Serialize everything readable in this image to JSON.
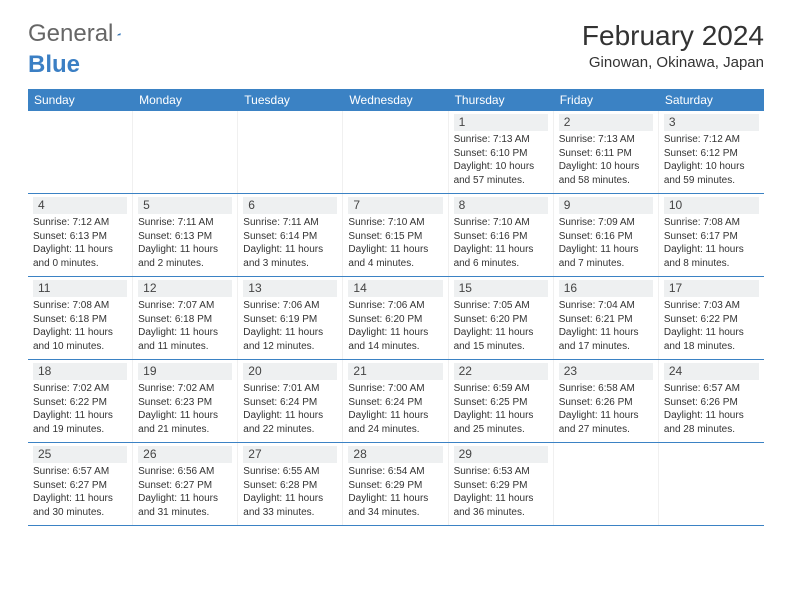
{
  "logo": {
    "text1": "General",
    "text2": "Blue"
  },
  "title": "February 2024",
  "location": "Ginowan, Okinawa, Japan",
  "colors": {
    "header_bg": "#3b82c4",
    "header_text": "#ffffff",
    "daynum_bg": "#eef0f1",
    "border": "#3b82c4",
    "logo_blue": "#3b7fc4"
  },
  "day_headers": [
    "Sunday",
    "Monday",
    "Tuesday",
    "Wednesday",
    "Thursday",
    "Friday",
    "Saturday"
  ],
  "weeks": [
    [
      {
        "empty": true
      },
      {
        "empty": true
      },
      {
        "empty": true
      },
      {
        "empty": true
      },
      {
        "day": "1",
        "sunrise": "Sunrise: 7:13 AM",
        "sunset": "Sunset: 6:10 PM",
        "daylight1": "Daylight: 10 hours",
        "daylight2": "and 57 minutes."
      },
      {
        "day": "2",
        "sunrise": "Sunrise: 7:13 AM",
        "sunset": "Sunset: 6:11 PM",
        "daylight1": "Daylight: 10 hours",
        "daylight2": "and 58 minutes."
      },
      {
        "day": "3",
        "sunrise": "Sunrise: 7:12 AM",
        "sunset": "Sunset: 6:12 PM",
        "daylight1": "Daylight: 10 hours",
        "daylight2": "and 59 minutes."
      }
    ],
    [
      {
        "day": "4",
        "sunrise": "Sunrise: 7:12 AM",
        "sunset": "Sunset: 6:13 PM",
        "daylight1": "Daylight: 11 hours",
        "daylight2": "and 0 minutes."
      },
      {
        "day": "5",
        "sunrise": "Sunrise: 7:11 AM",
        "sunset": "Sunset: 6:13 PM",
        "daylight1": "Daylight: 11 hours",
        "daylight2": "and 2 minutes."
      },
      {
        "day": "6",
        "sunrise": "Sunrise: 7:11 AM",
        "sunset": "Sunset: 6:14 PM",
        "daylight1": "Daylight: 11 hours",
        "daylight2": "and 3 minutes."
      },
      {
        "day": "7",
        "sunrise": "Sunrise: 7:10 AM",
        "sunset": "Sunset: 6:15 PM",
        "daylight1": "Daylight: 11 hours",
        "daylight2": "and 4 minutes."
      },
      {
        "day": "8",
        "sunrise": "Sunrise: 7:10 AM",
        "sunset": "Sunset: 6:16 PM",
        "daylight1": "Daylight: 11 hours",
        "daylight2": "and 6 minutes."
      },
      {
        "day": "9",
        "sunrise": "Sunrise: 7:09 AM",
        "sunset": "Sunset: 6:16 PM",
        "daylight1": "Daylight: 11 hours",
        "daylight2": "and 7 minutes."
      },
      {
        "day": "10",
        "sunrise": "Sunrise: 7:08 AM",
        "sunset": "Sunset: 6:17 PM",
        "daylight1": "Daylight: 11 hours",
        "daylight2": "and 8 minutes."
      }
    ],
    [
      {
        "day": "11",
        "sunrise": "Sunrise: 7:08 AM",
        "sunset": "Sunset: 6:18 PM",
        "daylight1": "Daylight: 11 hours",
        "daylight2": "and 10 minutes."
      },
      {
        "day": "12",
        "sunrise": "Sunrise: 7:07 AM",
        "sunset": "Sunset: 6:18 PM",
        "daylight1": "Daylight: 11 hours",
        "daylight2": "and 11 minutes."
      },
      {
        "day": "13",
        "sunrise": "Sunrise: 7:06 AM",
        "sunset": "Sunset: 6:19 PM",
        "daylight1": "Daylight: 11 hours",
        "daylight2": "and 12 minutes."
      },
      {
        "day": "14",
        "sunrise": "Sunrise: 7:06 AM",
        "sunset": "Sunset: 6:20 PM",
        "daylight1": "Daylight: 11 hours",
        "daylight2": "and 14 minutes."
      },
      {
        "day": "15",
        "sunrise": "Sunrise: 7:05 AM",
        "sunset": "Sunset: 6:20 PM",
        "daylight1": "Daylight: 11 hours",
        "daylight2": "and 15 minutes."
      },
      {
        "day": "16",
        "sunrise": "Sunrise: 7:04 AM",
        "sunset": "Sunset: 6:21 PM",
        "daylight1": "Daylight: 11 hours",
        "daylight2": "and 17 minutes."
      },
      {
        "day": "17",
        "sunrise": "Sunrise: 7:03 AM",
        "sunset": "Sunset: 6:22 PM",
        "daylight1": "Daylight: 11 hours",
        "daylight2": "and 18 minutes."
      }
    ],
    [
      {
        "day": "18",
        "sunrise": "Sunrise: 7:02 AM",
        "sunset": "Sunset: 6:22 PM",
        "daylight1": "Daylight: 11 hours",
        "daylight2": "and 19 minutes."
      },
      {
        "day": "19",
        "sunrise": "Sunrise: 7:02 AM",
        "sunset": "Sunset: 6:23 PM",
        "daylight1": "Daylight: 11 hours",
        "daylight2": "and 21 minutes."
      },
      {
        "day": "20",
        "sunrise": "Sunrise: 7:01 AM",
        "sunset": "Sunset: 6:24 PM",
        "daylight1": "Daylight: 11 hours",
        "daylight2": "and 22 minutes."
      },
      {
        "day": "21",
        "sunrise": "Sunrise: 7:00 AM",
        "sunset": "Sunset: 6:24 PM",
        "daylight1": "Daylight: 11 hours",
        "daylight2": "and 24 minutes."
      },
      {
        "day": "22",
        "sunrise": "Sunrise: 6:59 AM",
        "sunset": "Sunset: 6:25 PM",
        "daylight1": "Daylight: 11 hours",
        "daylight2": "and 25 minutes."
      },
      {
        "day": "23",
        "sunrise": "Sunrise: 6:58 AM",
        "sunset": "Sunset: 6:26 PM",
        "daylight1": "Daylight: 11 hours",
        "daylight2": "and 27 minutes."
      },
      {
        "day": "24",
        "sunrise": "Sunrise: 6:57 AM",
        "sunset": "Sunset: 6:26 PM",
        "daylight1": "Daylight: 11 hours",
        "daylight2": "and 28 minutes."
      }
    ],
    [
      {
        "day": "25",
        "sunrise": "Sunrise: 6:57 AM",
        "sunset": "Sunset: 6:27 PM",
        "daylight1": "Daylight: 11 hours",
        "daylight2": "and 30 minutes."
      },
      {
        "day": "26",
        "sunrise": "Sunrise: 6:56 AM",
        "sunset": "Sunset: 6:27 PM",
        "daylight1": "Daylight: 11 hours",
        "daylight2": "and 31 minutes."
      },
      {
        "day": "27",
        "sunrise": "Sunrise: 6:55 AM",
        "sunset": "Sunset: 6:28 PM",
        "daylight1": "Daylight: 11 hours",
        "daylight2": "and 33 minutes."
      },
      {
        "day": "28",
        "sunrise": "Sunrise: 6:54 AM",
        "sunset": "Sunset: 6:29 PM",
        "daylight1": "Daylight: 11 hours",
        "daylight2": "and 34 minutes."
      },
      {
        "day": "29",
        "sunrise": "Sunrise: 6:53 AM",
        "sunset": "Sunset: 6:29 PM",
        "daylight1": "Daylight: 11 hours",
        "daylight2": "and 36 minutes."
      },
      {
        "empty": true
      },
      {
        "empty": true
      }
    ]
  ]
}
